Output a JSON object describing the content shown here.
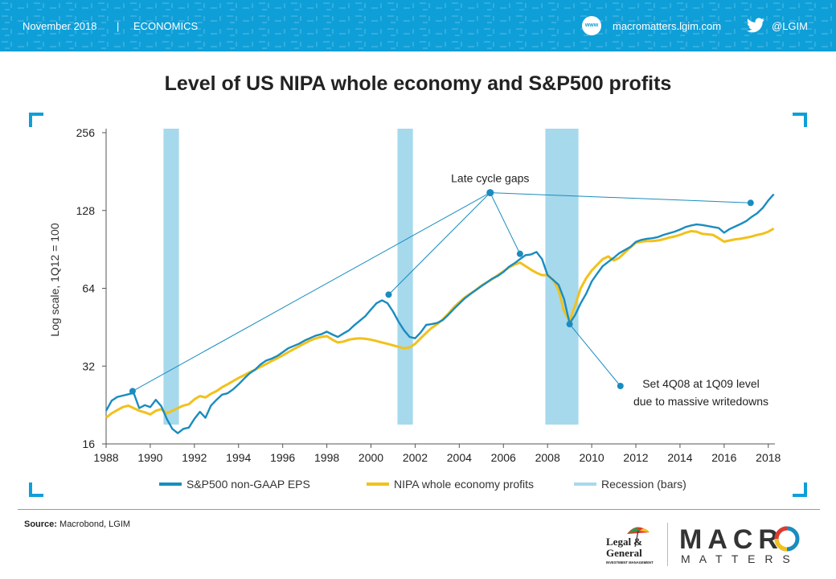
{
  "header": {
    "date": "November 2018",
    "separator": "|",
    "section": "ECONOMICS",
    "website_icon": "www",
    "website": "macromatters.lgim.com",
    "twitter": "@LGIM",
    "twitter_icon": "twitter-bird-icon",
    "accent_color": "#0f9fd8"
  },
  "title": "Level of US NIPA whole economy and S&P500 profits",
  "source_label": "Source:",
  "source_text": " Macrobond, LGIM",
  "logos": {
    "lg_line1": "Legal &",
    "lg_line2": "General",
    "lg_line3": "INVESTMENT MANAGEMENT",
    "macro": "MACR",
    "macro_o": "O",
    "matters": "M A T T E R S"
  },
  "chart_data": {
    "type": "line",
    "ylabel": "Log scale, 1Q12 = 100",
    "yscale": "log2",
    "ylim": [
      16,
      256
    ],
    "yticks": [
      16,
      32,
      64,
      128,
      256
    ],
    "xlim": [
      1988,
      2018.3
    ],
    "xticks": [
      1988,
      1990,
      1992,
      1994,
      1996,
      1998,
      2000,
      2002,
      2004,
      2006,
      2008,
      2010,
      2012,
      2014,
      2016,
      2018
    ],
    "recessions": [
      [
        1990.6,
        1991.3
      ],
      [
        2001.2,
        2001.9
      ],
      [
        2007.9,
        2009.4
      ]
    ],
    "series": [
      {
        "name": "S&P500 non-GAAP EPS",
        "color": "#1a8cbf",
        "points": [
          [
            1988.0,
            21.5
          ],
          [
            1988.25,
            23.5
          ],
          [
            1988.5,
            24.3
          ],
          [
            1988.75,
            24.6
          ],
          [
            1989.0,
            24.9
          ],
          [
            1989.25,
            25.2
          ],
          [
            1989.5,
            22
          ],
          [
            1989.75,
            22.6
          ],
          [
            1990.0,
            22.2
          ],
          [
            1990.25,
            23.7
          ],
          [
            1990.5,
            22.4
          ],
          [
            1990.75,
            20
          ],
          [
            1991.0,
            18.3
          ],
          [
            1991.25,
            17.6
          ],
          [
            1991.5,
            18.3
          ],
          [
            1991.75,
            18.5
          ],
          [
            1992.0,
            20
          ],
          [
            1992.25,
            21.3
          ],
          [
            1992.5,
            20.2
          ],
          [
            1992.75,
            22.5
          ],
          [
            1993.0,
            23.7
          ],
          [
            1993.25,
            24.8
          ],
          [
            1993.5,
            25.1
          ],
          [
            1993.75,
            26
          ],
          [
            1994.0,
            27.2
          ],
          [
            1994.25,
            28.6
          ],
          [
            1994.5,
            30
          ],
          [
            1994.75,
            31
          ],
          [
            1995.0,
            32.5
          ],
          [
            1995.25,
            33.6
          ],
          [
            1995.5,
            34.2
          ],
          [
            1995.75,
            35
          ],
          [
            1996.0,
            36.2
          ],
          [
            1996.25,
            37.5
          ],
          [
            1996.5,
            38.3
          ],
          [
            1996.75,
            39.1
          ],
          [
            1997.0,
            40.2
          ],
          [
            1997.25,
            41.1
          ],
          [
            1997.5,
            42
          ],
          [
            1997.75,
            42.5
          ],
          [
            1998.0,
            43.5
          ],
          [
            1998.25,
            42.4
          ],
          [
            1998.5,
            41.5
          ],
          [
            1998.75,
            42.8
          ],
          [
            1999.0,
            44
          ],
          [
            1999.25,
            46.1
          ],
          [
            1999.5,
            48
          ],
          [
            1999.75,
            50
          ],
          [
            2000.0,
            53
          ],
          [
            2000.25,
            56
          ],
          [
            2000.5,
            57.5
          ],
          [
            2000.75,
            56
          ],
          [
            2001.0,
            52
          ],
          [
            2001.25,
            47.5
          ],
          [
            2001.5,
            44
          ],
          [
            2001.75,
            41.5
          ],
          [
            2002.0,
            41
          ],
          [
            2002.25,
            43.2
          ],
          [
            2002.5,
            46.2
          ],
          [
            2002.75,
            46.5
          ],
          [
            2003.0,
            47
          ],
          [
            2003.25,
            48.2
          ],
          [
            2003.5,
            50.5
          ],
          [
            2003.75,
            53.2
          ],
          [
            2004.0,
            55.8
          ],
          [
            2004.25,
            58.5
          ],
          [
            2004.5,
            60.8
          ],
          [
            2004.75,
            63
          ],
          [
            2005.0,
            65.2
          ],
          [
            2005.25,
            67.5
          ],
          [
            2005.5,
            69.8
          ],
          [
            2005.75,
            71.5
          ],
          [
            2006.0,
            74
          ],
          [
            2006.25,
            77.5
          ],
          [
            2006.5,
            80
          ],
          [
            2006.75,
            83
          ],
          [
            2007.0,
            86
          ],
          [
            2007.25,
            86.5
          ],
          [
            2007.5,
            88.5
          ],
          [
            2007.75,
            83
          ],
          [
            2008.0,
            72
          ],
          [
            2008.25,
            69
          ],
          [
            2008.5,
            66
          ],
          [
            2008.75,
            58
          ],
          [
            2009.0,
            46.8
          ],
          [
            2009.25,
            50.5
          ],
          [
            2009.5,
            56
          ],
          [
            2009.75,
            61
          ],
          [
            2010.0,
            68
          ],
          [
            2010.25,
            73
          ],
          [
            2010.5,
            78
          ],
          [
            2010.75,
            81
          ],
          [
            2011.0,
            84
          ],
          [
            2011.25,
            87.5
          ],
          [
            2011.5,
            90
          ],
          [
            2011.75,
            92.5
          ],
          [
            2012.0,
            96.8
          ],
          [
            2012.25,
            98.5
          ],
          [
            2012.5,
            99.5
          ],
          [
            2012.75,
            100
          ],
          [
            2013.0,
            101
          ],
          [
            2013.25,
            103
          ],
          [
            2013.5,
            104.5
          ],
          [
            2013.75,
            106
          ],
          [
            2014.0,
            108
          ],
          [
            2014.25,
            110.5
          ],
          [
            2014.5,
            112
          ],
          [
            2014.75,
            113
          ],
          [
            2015.0,
            112.5
          ],
          [
            2015.25,
            111.5
          ],
          [
            2015.5,
            110.5
          ],
          [
            2015.75,
            109.5
          ],
          [
            2016.0,
            105
          ],
          [
            2016.25,
            108.5
          ],
          [
            2016.5,
            111
          ],
          [
            2016.75,
            113.5
          ],
          [
            2017.0,
            116.5
          ],
          [
            2017.25,
            121
          ],
          [
            2017.5,
            125
          ],
          [
            2017.75,
            131
          ],
          [
            2018.0,
            140
          ],
          [
            2018.25,
            148
          ]
        ]
      },
      {
        "name": "NIPA whole economy profits",
        "color": "#f2c11b",
        "points": [
          [
            1988.0,
            20.2
          ],
          [
            1988.25,
            21
          ],
          [
            1988.5,
            21.6
          ],
          [
            1988.75,
            22.2
          ],
          [
            1989.0,
            22.5
          ],
          [
            1989.25,
            22
          ],
          [
            1989.5,
            21.5
          ],
          [
            1989.75,
            21.2
          ],
          [
            1990.0,
            20.8
          ],
          [
            1990.25,
            21.5
          ],
          [
            1990.5,
            21.8
          ],
          [
            1990.75,
            21
          ],
          [
            1991.0,
            21.5
          ],
          [
            1991.25,
            22
          ],
          [
            1991.5,
            22.5
          ],
          [
            1991.75,
            22.8
          ],
          [
            1992.0,
            23.8
          ],
          [
            1992.25,
            24.5
          ],
          [
            1992.5,
            24.2
          ],
          [
            1992.75,
            25
          ],
          [
            1993.0,
            25.6
          ],
          [
            1993.25,
            26.5
          ],
          [
            1993.5,
            27.2
          ],
          [
            1993.75,
            28
          ],
          [
            1994.0,
            28.8
          ],
          [
            1994.25,
            29.5
          ],
          [
            1994.5,
            30.3
          ],
          [
            1994.75,
            31
          ],
          [
            1995.0,
            31.8
          ],
          [
            1995.25,
            32.6
          ],
          [
            1995.5,
            33.5
          ],
          [
            1995.75,
            34.3
          ],
          [
            1996.0,
            35.2
          ],
          [
            1996.25,
            36.2
          ],
          [
            1996.5,
            37.2
          ],
          [
            1996.75,
            38.2
          ],
          [
            1997.0,
            39.2
          ],
          [
            1997.25,
            40.2
          ],
          [
            1997.5,
            41
          ],
          [
            1997.75,
            41.5
          ],
          [
            1998.0,
            41.8
          ],
          [
            1998.25,
            40.5
          ],
          [
            1998.5,
            39.5
          ],
          [
            1998.75,
            39.8
          ],
          [
            1999.0,
            40.5
          ],
          [
            1999.25,
            40.8
          ],
          [
            1999.5,
            41
          ],
          [
            1999.75,
            40.8
          ],
          [
            2000.0,
            40.5
          ],
          [
            2000.25,
            40
          ],
          [
            2000.5,
            39.5
          ],
          [
            2000.75,
            39
          ],
          [
            2001.0,
            38.5
          ],
          [
            2001.25,
            38
          ],
          [
            2001.5,
            37.5
          ],
          [
            2001.75,
            37.8
          ],
          [
            2002.0,
            39
          ],
          [
            2002.25,
            41
          ],
          [
            2002.5,
            43
          ],
          [
            2002.75,
            45
          ],
          [
            2003.0,
            46.5
          ],
          [
            2003.25,
            48.5
          ],
          [
            2003.5,
            51
          ],
          [
            2003.75,
            54
          ],
          [
            2004.0,
            56.5
          ],
          [
            2004.25,
            59
          ],
          [
            2004.5,
            61
          ],
          [
            2004.75,
            63
          ],
          [
            2005.0,
            65.5
          ],
          [
            2005.25,
            67.5
          ],
          [
            2005.5,
            69.5
          ],
          [
            2005.75,
            72
          ],
          [
            2006.0,
            74.5
          ],
          [
            2006.25,
            77
          ],
          [
            2006.5,
            79
          ],
          [
            2006.75,
            80.5
          ],
          [
            2007.0,
            78
          ],
          [
            2007.25,
            75.5
          ],
          [
            2007.5,
            73.5
          ],
          [
            2007.75,
            72
          ],
          [
            2008.0,
            72
          ],
          [
            2008.25,
            69
          ],
          [
            2008.5,
            63
          ],
          [
            2008.75,
            52
          ],
          [
            2009.0,
            48
          ],
          [
            2009.25,
            55
          ],
          [
            2009.5,
            64
          ],
          [
            2009.75,
            70
          ],
          [
            2010.0,
            75
          ],
          [
            2010.25,
            79
          ],
          [
            2010.5,
            83
          ],
          [
            2010.75,
            85
          ],
          [
            2011.0,
            82
          ],
          [
            2011.25,
            84
          ],
          [
            2011.5,
            88
          ],
          [
            2011.75,
            92
          ],
          [
            2012.0,
            96
          ],
          [
            2012.25,
            97
          ],
          [
            2012.5,
            97.5
          ],
          [
            2012.75,
            97.5
          ],
          [
            2013.0,
            98
          ],
          [
            2013.25,
            99
          ],
          [
            2013.5,
            100.5
          ],
          [
            2013.75,
            101.5
          ],
          [
            2014.0,
            103
          ],
          [
            2014.25,
            105
          ],
          [
            2014.5,
            106.5
          ],
          [
            2014.75,
            106
          ],
          [
            2015.0,
            104
          ],
          [
            2015.25,
            103.5
          ],
          [
            2015.5,
            103
          ],
          [
            2015.75,
            100
          ],
          [
            2016.0,
            97
          ],
          [
            2016.25,
            98
          ],
          [
            2016.5,
            99
          ],
          [
            2016.75,
            99.5
          ],
          [
            2017.0,
            100.5
          ],
          [
            2017.25,
            101.5
          ],
          [
            2017.5,
            103
          ],
          [
            2017.75,
            104
          ],
          [
            2018.0,
            106
          ],
          [
            2018.25,
            109
          ]
        ]
      }
    ],
    "annotations": [
      {
        "text": "Late cycle gaps",
        "hub": [
          2005.4,
          150
        ],
        "targets": [
          [
            1989.2,
            25.6
          ],
          [
            2000.8,
            60.5
          ],
          [
            2006.75,
            87
          ],
          [
            2017.2,
            137
          ]
        ]
      },
      {
        "text": "Set 4Q08 at 1Q09 level",
        "text2": "due to massive writedowns",
        "from": [
          2009.0,
          46.5
        ],
        "to": [
          2011.3,
          26.8
        ]
      }
    ],
    "legend": {
      "position": "bottom",
      "entries": [
        {
          "label": "S&P500 non-GAAP EPS",
          "color": "#1a8cbf"
        },
        {
          "label": "NIPA whole economy profits",
          "color": "#f2c11b"
        },
        {
          "label": "Recession (bars)",
          "color": "#a6d9ec"
        }
      ]
    }
  }
}
